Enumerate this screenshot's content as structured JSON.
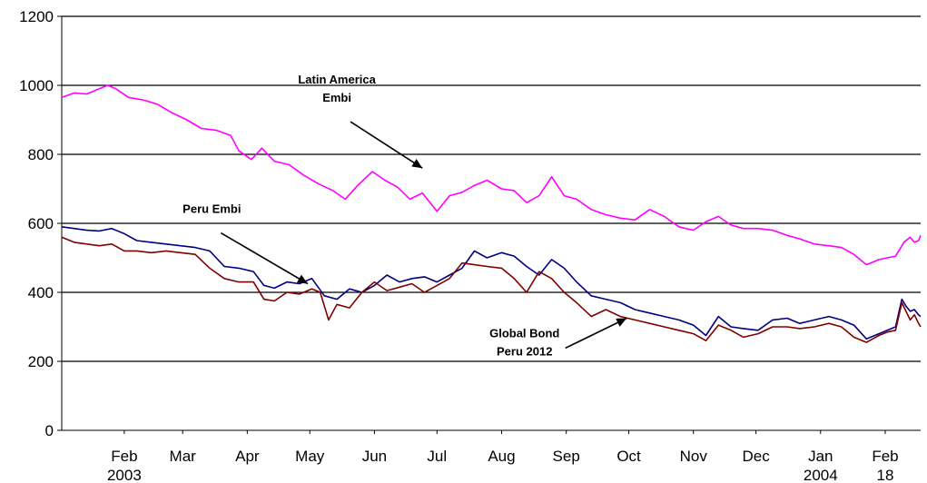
{
  "chart_data": {
    "type": "line",
    "title": "",
    "xlabel": "",
    "ylabel": "",
    "ylim": [
      0,
      1200
    ],
    "yticks": [
      0,
      200,
      400,
      600,
      800,
      1000,
      1200
    ],
    "grid": "horizontal",
    "x_axis": {
      "start": "2003-01-02",
      "end": "2004-02-18",
      "ticks": [
        {
          "date": "2003-02-01",
          "label": "Feb",
          "sublabel": "2003"
        },
        {
          "date": "2003-03-01",
          "label": "Mar",
          "sublabel": ""
        },
        {
          "date": "2003-04-01",
          "label": "Apr",
          "sublabel": ""
        },
        {
          "date": "2003-05-01",
          "label": "May",
          "sublabel": ""
        },
        {
          "date": "2003-06-01",
          "label": "Jun",
          "sublabel": ""
        },
        {
          "date": "2003-07-01",
          "label": "Jul",
          "sublabel": ""
        },
        {
          "date": "2003-08-01",
          "label": "Aug",
          "sublabel": ""
        },
        {
          "date": "2003-09-01",
          "label": "Sep",
          "sublabel": ""
        },
        {
          "date": "2003-10-01",
          "label": "Oct",
          "sublabel": ""
        },
        {
          "date": "2003-11-01",
          "label": "Nov",
          "sublabel": ""
        },
        {
          "date": "2003-12-01",
          "label": "Dec",
          "sublabel": ""
        },
        {
          "date": "2004-01-01",
          "label": "Jan",
          "sublabel": "2004"
        },
        {
          "date": "2004-02-01",
          "label": "Feb",
          "sublabel": "18"
        }
      ]
    },
    "series": [
      {
        "id": "latin-america-embi",
        "color": "#ff00ff",
        "points": [
          [
            "2003-01-02",
            965
          ],
          [
            "2003-01-08",
            978
          ],
          [
            "2003-01-14",
            975
          ],
          [
            "2003-01-20",
            990
          ],
          [
            "2003-01-24",
            1000
          ],
          [
            "2003-01-28",
            990
          ],
          [
            "2003-02-03",
            965
          ],
          [
            "2003-02-10",
            958
          ],
          [
            "2003-02-17",
            945
          ],
          [
            "2003-02-24",
            920
          ],
          [
            "2003-03-03",
            900
          ],
          [
            "2003-03-10",
            875
          ],
          [
            "2003-03-17",
            870
          ],
          [
            "2003-03-24",
            855
          ],
          [
            "2003-03-28",
            810
          ],
          [
            "2003-04-03",
            785
          ],
          [
            "2003-04-08",
            818
          ],
          [
            "2003-04-14",
            780
          ],
          [
            "2003-04-21",
            770
          ],
          [
            "2003-04-28",
            740
          ],
          [
            "2003-05-05",
            715
          ],
          [
            "2003-05-12",
            695
          ],
          [
            "2003-05-18",
            670
          ],
          [
            "2003-05-24",
            710
          ],
          [
            "2003-05-31",
            750
          ],
          [
            "2003-06-06",
            725
          ],
          [
            "2003-06-12",
            705
          ],
          [
            "2003-06-18",
            670
          ],
          [
            "2003-06-24",
            688
          ],
          [
            "2003-07-01",
            635
          ],
          [
            "2003-07-07",
            680
          ],
          [
            "2003-07-13",
            690
          ],
          [
            "2003-07-19",
            710
          ],
          [
            "2003-07-25",
            725
          ],
          [
            "2003-08-01",
            700
          ],
          [
            "2003-08-07",
            695
          ],
          [
            "2003-08-13",
            660
          ],
          [
            "2003-08-19",
            680
          ],
          [
            "2003-08-25",
            735
          ],
          [
            "2003-08-31",
            680
          ],
          [
            "2003-09-06",
            670
          ],
          [
            "2003-09-13",
            640
          ],
          [
            "2003-09-20",
            625
          ],
          [
            "2003-09-27",
            615
          ],
          [
            "2003-10-04",
            610
          ],
          [
            "2003-10-11",
            640
          ],
          [
            "2003-10-18",
            620
          ],
          [
            "2003-10-25",
            590
          ],
          [
            "2003-11-01",
            580
          ],
          [
            "2003-11-07",
            605
          ],
          [
            "2003-11-13",
            620
          ],
          [
            "2003-11-19",
            595
          ],
          [
            "2003-11-25",
            585
          ],
          [
            "2003-12-02",
            585
          ],
          [
            "2003-12-09",
            580
          ],
          [
            "2003-12-16",
            565
          ],
          [
            "2003-12-22",
            555
          ],
          [
            "2003-12-29",
            540
          ],
          [
            "2004-01-05",
            535
          ],
          [
            "2004-01-11",
            530
          ],
          [
            "2004-01-17",
            510
          ],
          [
            "2004-01-23",
            480
          ],
          [
            "2004-01-29",
            495
          ],
          [
            "2004-02-02",
            500
          ],
          [
            "2004-02-06",
            505
          ],
          [
            "2004-02-10",
            545
          ],
          [
            "2004-02-13",
            560
          ],
          [
            "2004-02-15",
            545
          ],
          [
            "2004-02-17",
            550
          ],
          [
            "2004-02-18",
            565
          ]
        ]
      },
      {
        "id": "peru-embi",
        "color": "#000080",
        "points": [
          [
            "2003-01-02",
            590
          ],
          [
            "2003-01-08",
            585
          ],
          [
            "2003-01-14",
            580
          ],
          [
            "2003-01-20",
            578
          ],
          [
            "2003-01-26",
            585
          ],
          [
            "2003-02-01",
            570
          ],
          [
            "2003-02-07",
            550
          ],
          [
            "2003-02-14",
            545
          ],
          [
            "2003-02-21",
            540
          ],
          [
            "2003-02-28",
            535
          ],
          [
            "2003-03-07",
            530
          ],
          [
            "2003-03-14",
            520
          ],
          [
            "2003-03-21",
            475
          ],
          [
            "2003-03-28",
            470
          ],
          [
            "2003-04-04",
            460
          ],
          [
            "2003-04-09",
            420
          ],
          [
            "2003-04-14",
            412
          ],
          [
            "2003-04-20",
            430
          ],
          [
            "2003-04-26",
            425
          ],
          [
            "2003-05-02",
            440
          ],
          [
            "2003-05-08",
            390
          ],
          [
            "2003-05-14",
            380
          ],
          [
            "2003-05-20",
            410
          ],
          [
            "2003-05-26",
            400
          ],
          [
            "2003-06-01",
            420
          ],
          [
            "2003-06-07",
            450
          ],
          [
            "2003-06-13",
            430
          ],
          [
            "2003-06-19",
            440
          ],
          [
            "2003-06-25",
            445
          ],
          [
            "2003-07-01",
            430
          ],
          [
            "2003-07-07",
            450
          ],
          [
            "2003-07-13",
            470
          ],
          [
            "2003-07-19",
            520
          ],
          [
            "2003-07-25",
            500
          ],
          [
            "2003-08-01",
            515
          ],
          [
            "2003-08-07",
            505
          ],
          [
            "2003-08-13",
            475
          ],
          [
            "2003-08-19",
            450
          ],
          [
            "2003-08-25",
            495
          ],
          [
            "2003-08-31",
            470
          ],
          [
            "2003-09-06",
            430
          ],
          [
            "2003-09-13",
            390
          ],
          [
            "2003-09-20",
            380
          ],
          [
            "2003-09-27",
            370
          ],
          [
            "2003-10-04",
            350
          ],
          [
            "2003-10-11",
            340
          ],
          [
            "2003-10-18",
            330
          ],
          [
            "2003-10-25",
            320
          ],
          [
            "2003-11-01",
            305
          ],
          [
            "2003-11-07",
            275
          ],
          [
            "2003-11-13",
            330
          ],
          [
            "2003-11-19",
            300
          ],
          [
            "2003-11-25",
            295
          ],
          [
            "2003-12-02",
            290
          ],
          [
            "2003-12-09",
            320
          ],
          [
            "2003-12-16",
            325
          ],
          [
            "2003-12-22",
            310
          ],
          [
            "2003-12-29",
            320
          ],
          [
            "2004-01-05",
            330
          ],
          [
            "2004-01-11",
            320
          ],
          [
            "2004-01-17",
            305
          ],
          [
            "2004-01-23",
            265
          ],
          [
            "2004-01-29",
            280
          ],
          [
            "2004-02-02",
            290
          ],
          [
            "2004-02-06",
            300
          ],
          [
            "2004-02-09",
            380
          ],
          [
            "2004-02-11",
            360
          ],
          [
            "2004-02-13",
            345
          ],
          [
            "2004-02-15",
            350
          ],
          [
            "2004-02-17",
            335
          ],
          [
            "2004-02-18",
            330
          ]
        ]
      },
      {
        "id": "global-bond-peru-2012",
        "color": "#800000",
        "points": [
          [
            "2003-01-02",
            560
          ],
          [
            "2003-01-08",
            545
          ],
          [
            "2003-01-14",
            540
          ],
          [
            "2003-01-20",
            535
          ],
          [
            "2003-01-26",
            540
          ],
          [
            "2003-02-01",
            520
          ],
          [
            "2003-02-07",
            520
          ],
          [
            "2003-02-14",
            515
          ],
          [
            "2003-02-21",
            520
          ],
          [
            "2003-02-28",
            515
          ],
          [
            "2003-03-07",
            510
          ],
          [
            "2003-03-14",
            470
          ],
          [
            "2003-03-21",
            440
          ],
          [
            "2003-03-28",
            430
          ],
          [
            "2003-04-04",
            430
          ],
          [
            "2003-04-09",
            380
          ],
          [
            "2003-04-14",
            375
          ],
          [
            "2003-04-20",
            400
          ],
          [
            "2003-04-26",
            395
          ],
          [
            "2003-05-02",
            410
          ],
          [
            "2003-05-06",
            400
          ],
          [
            "2003-05-10",
            320
          ],
          [
            "2003-05-14",
            365
          ],
          [
            "2003-05-20",
            355
          ],
          [
            "2003-05-26",
            400
          ],
          [
            "2003-06-01",
            430
          ],
          [
            "2003-06-07",
            405
          ],
          [
            "2003-06-13",
            415
          ],
          [
            "2003-06-19",
            425
          ],
          [
            "2003-06-25",
            400
          ],
          [
            "2003-07-01",
            420
          ],
          [
            "2003-07-07",
            440
          ],
          [
            "2003-07-13",
            485
          ],
          [
            "2003-07-19",
            480
          ],
          [
            "2003-07-25",
            475
          ],
          [
            "2003-08-01",
            470
          ],
          [
            "2003-08-07",
            440
          ],
          [
            "2003-08-13",
            400
          ],
          [
            "2003-08-19",
            460
          ],
          [
            "2003-08-25",
            440
          ],
          [
            "2003-08-31",
            400
          ],
          [
            "2003-09-06",
            370
          ],
          [
            "2003-09-13",
            330
          ],
          [
            "2003-09-20",
            350
          ],
          [
            "2003-09-27",
            330
          ],
          [
            "2003-10-04",
            320
          ],
          [
            "2003-10-11",
            310
          ],
          [
            "2003-10-18",
            300
          ],
          [
            "2003-10-25",
            290
          ],
          [
            "2003-11-01",
            280
          ],
          [
            "2003-11-07",
            260
          ],
          [
            "2003-11-13",
            305
          ],
          [
            "2003-11-19",
            290
          ],
          [
            "2003-11-25",
            270
          ],
          [
            "2003-12-02",
            280
          ],
          [
            "2003-12-09",
            300
          ],
          [
            "2003-12-16",
            300
          ],
          [
            "2003-12-22",
            295
          ],
          [
            "2003-12-29",
            300
          ],
          [
            "2004-01-05",
            310
          ],
          [
            "2004-01-11",
            300
          ],
          [
            "2004-01-17",
            270
          ],
          [
            "2004-01-23",
            255
          ],
          [
            "2004-01-29",
            275
          ],
          [
            "2004-02-02",
            285
          ],
          [
            "2004-02-06",
            290
          ],
          [
            "2004-02-09",
            370
          ],
          [
            "2004-02-11",
            345
          ],
          [
            "2004-02-13",
            320
          ],
          [
            "2004-02-15",
            335
          ],
          [
            "2004-02-17",
            310
          ],
          [
            "2004-02-18",
            300
          ]
        ]
      }
    ],
    "annotations": [
      {
        "id": "latin-america-embi",
        "lines": [
          "Latin America",
          "Embi"
        ],
        "anchor": {
          "date": "2003-05-14",
          "value": 1005
        },
        "arrow_to": {
          "date": "2003-06-24",
          "value": 760
        }
      },
      {
        "id": "peru-embi",
        "lines": [
          "Peru  Embi"
        ],
        "anchor": {
          "date": "2003-03-15",
          "value": 630
        },
        "arrow_to": {
          "date": "2003-04-30",
          "value": 425
        }
      },
      {
        "id": "global-bond-peru-2012",
        "lines": [
          "Global Bond",
          "Peru 2012"
        ],
        "anchor": {
          "date": "2003-08-12",
          "value": 270
        },
        "arrow_to": {
          "date": "2003-09-30",
          "value": 325
        }
      }
    ]
  }
}
